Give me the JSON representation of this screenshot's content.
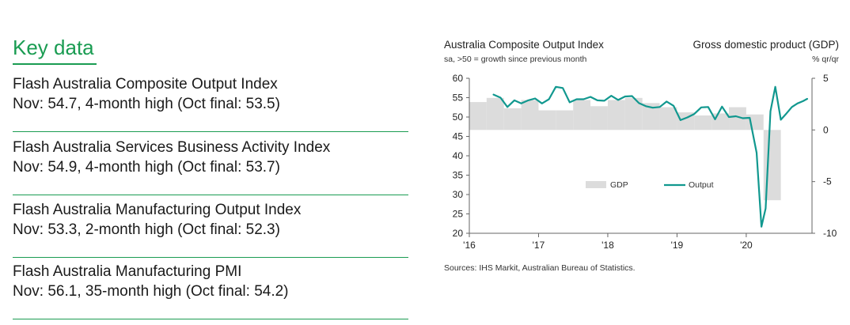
{
  "key_data": {
    "title": "Key data",
    "items": [
      {
        "name": "Flash Australia Composite Output Index",
        "detail": "Nov: 54.7, 4-month high (Oct final: 53.5)"
      },
      {
        "name": "Flash Australia Services Business Activity Index",
        "detail": "Nov: 54.9, 4-month high (Oct final: 53.7)"
      },
      {
        "name": "Flash Australia Manufacturing Output Index",
        "detail": "Nov: 53.3, 2-month high (Oct final: 52.3)"
      },
      {
        "name": "Flash Australia Manufacturing PMI",
        "detail": "Nov: 56.1, 35-month high (Oct final: 54.2)"
      }
    ]
  },
  "chart_data": {
    "type": "bar+line",
    "title_left": "Australia Composite Output Index",
    "subtitle_left": "sa, >50 = growth since previous month",
    "title_right": "Gross domestic product (GDP)",
    "subtitle_right": "% qr/qr",
    "left_axis": {
      "range": [
        20,
        60
      ],
      "ticks": [
        "60",
        "55",
        "50",
        "45",
        "40",
        "35",
        "30",
        "25",
        "20"
      ]
    },
    "right_axis": {
      "range": [
        -10,
        5
      ],
      "ticks": [
        "5",
        "0",
        "-5",
        "-10"
      ]
    },
    "x_axis": {
      "range": [
        2016.0,
        2020.95
      ],
      "ticks": [
        "'16",
        "'17",
        "'18",
        "'19",
        "'20"
      ]
    },
    "legend": {
      "gdp_label": "GDP",
      "output_label": "Output"
    },
    "colors": {
      "gdp": "#dcdcdc",
      "output": "#11988f",
      "axis": "#666666"
    },
    "series": [
      {
        "name": "GDP",
        "axis": "right",
        "quarters": [
          2016.0,
          2016.25,
          2016.5,
          2016.75,
          2017.0,
          2017.25,
          2017.5,
          2017.75,
          2018.0,
          2018.25,
          2018.5,
          2018.75,
          2019.0,
          2019.25,
          2019.5,
          2019.75,
          2020.0,
          2020.25,
          2020.5,
          2020.75
        ],
        "values": [
          2.7,
          3.1,
          2.1,
          2.9,
          1.9,
          1.9,
          2.9,
          2.3,
          2.9,
          3.1,
          2.6,
          2.2,
          1.7,
          1.4,
          1.6,
          2.2,
          1.5,
          -6.8,
          0,
          0
        ]
      },
      {
        "name": "Output",
        "axis": "left",
        "x": [
          2016.35,
          2016.45,
          2016.55,
          2016.65,
          2016.75,
          2016.85,
          2016.95,
          2017.05,
          2017.15,
          2017.25,
          2017.35,
          2017.45,
          2017.55,
          2017.65,
          2017.75,
          2017.85,
          2017.95,
          2018.05,
          2018.15,
          2018.25,
          2018.35,
          2018.45,
          2018.55,
          2018.65,
          2018.75,
          2018.85,
          2018.95,
          2019.05,
          2019.15,
          2019.25,
          2019.35,
          2019.45,
          2019.55,
          2019.65,
          2019.75,
          2019.85,
          2019.95,
          2020.05,
          2020.15,
          2020.22,
          2020.28,
          2020.35,
          2020.42,
          2020.5,
          2020.58,
          2020.66,
          2020.74,
          2020.82,
          2020.88
        ],
        "y": [
          55.8,
          55.0,
          52.6,
          54.3,
          53.5,
          54.3,
          54.8,
          53.5,
          54.6,
          57.8,
          57.5,
          53.8,
          54.6,
          54.6,
          55.2,
          54.3,
          54.2,
          55.5,
          54.4,
          55.3,
          55.4,
          53.6,
          52.8,
          52.4,
          52.6,
          54.0,
          52.9,
          49.2,
          49.9,
          50.8,
          52.5,
          52.6,
          49.4,
          52.7,
          50.0,
          50.2,
          49.7,
          49.8,
          40.8,
          21.7,
          26.4,
          51.5,
          57.8,
          49.3,
          50.9,
          52.6,
          53.5,
          54.1,
          54.7
        ]
      }
    ],
    "source": "Sources: IHS Markit, Australian Bureau of Statistics."
  }
}
